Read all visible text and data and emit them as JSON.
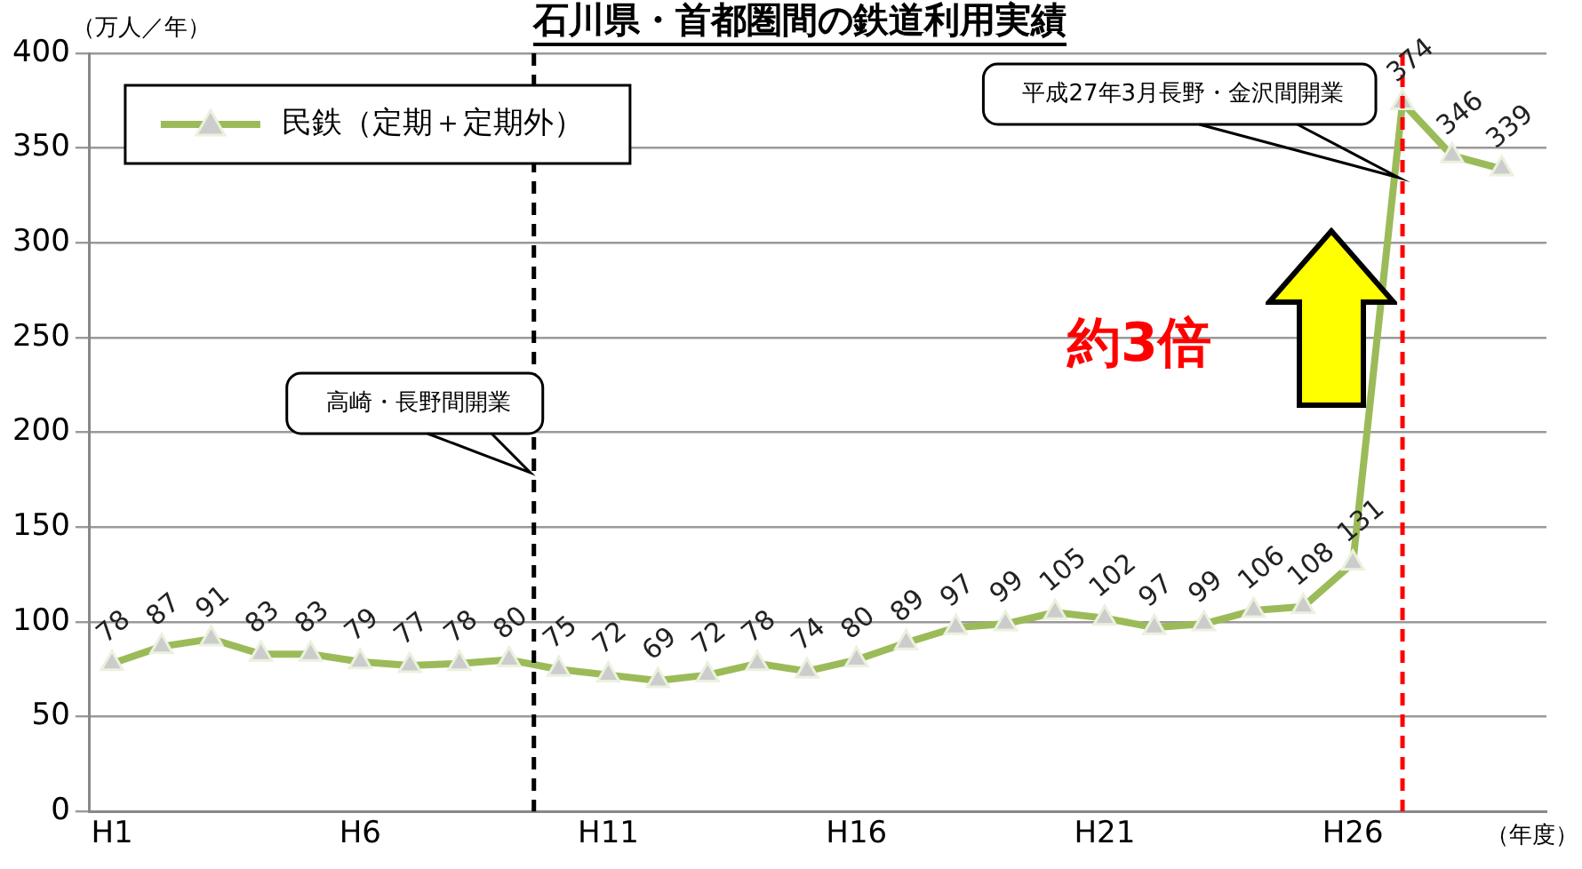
{
  "chart_data": {
    "type": "line",
    "title": "石川県・首都圏間の鉄道利用実績",
    "ylabel": "（万人／年）",
    "xlabel": "（年度）",
    "categories": [
      "H1",
      null,
      null,
      null,
      null,
      "H6",
      null,
      null,
      null,
      null,
      "H11",
      null,
      null,
      null,
      null,
      "H16",
      null,
      null,
      null,
      null,
      "H21",
      null,
      null,
      null,
      null,
      "H26",
      null,
      null,
      null
    ],
    "series": [
      {
        "name": "民鉄（定期＋定期外）",
        "color": "#9bbb59",
        "values": [
          78,
          87,
          91,
          83,
          83,
          79,
          77,
          78,
          80,
          75,
          72,
          69,
          72,
          78,
          74,
          80,
          89,
          97,
          99,
          105,
          102,
          97,
          99,
          106,
          108,
          131,
          374,
          346,
          339
        ]
      }
    ],
    "ylim": [
      0,
      400
    ],
    "yticks": [
      0,
      50,
      100,
      150,
      200,
      250,
      300,
      350,
      400
    ],
    "grid": "y",
    "legend": "top left",
    "marker": "triangle",
    "line_style": "solid",
    "data_labels": true,
    "annotations": [
      "高崎・長野間開業",
      "平成27年3月長野・金沢間開業",
      "約3倍"
    ]
  }
}
